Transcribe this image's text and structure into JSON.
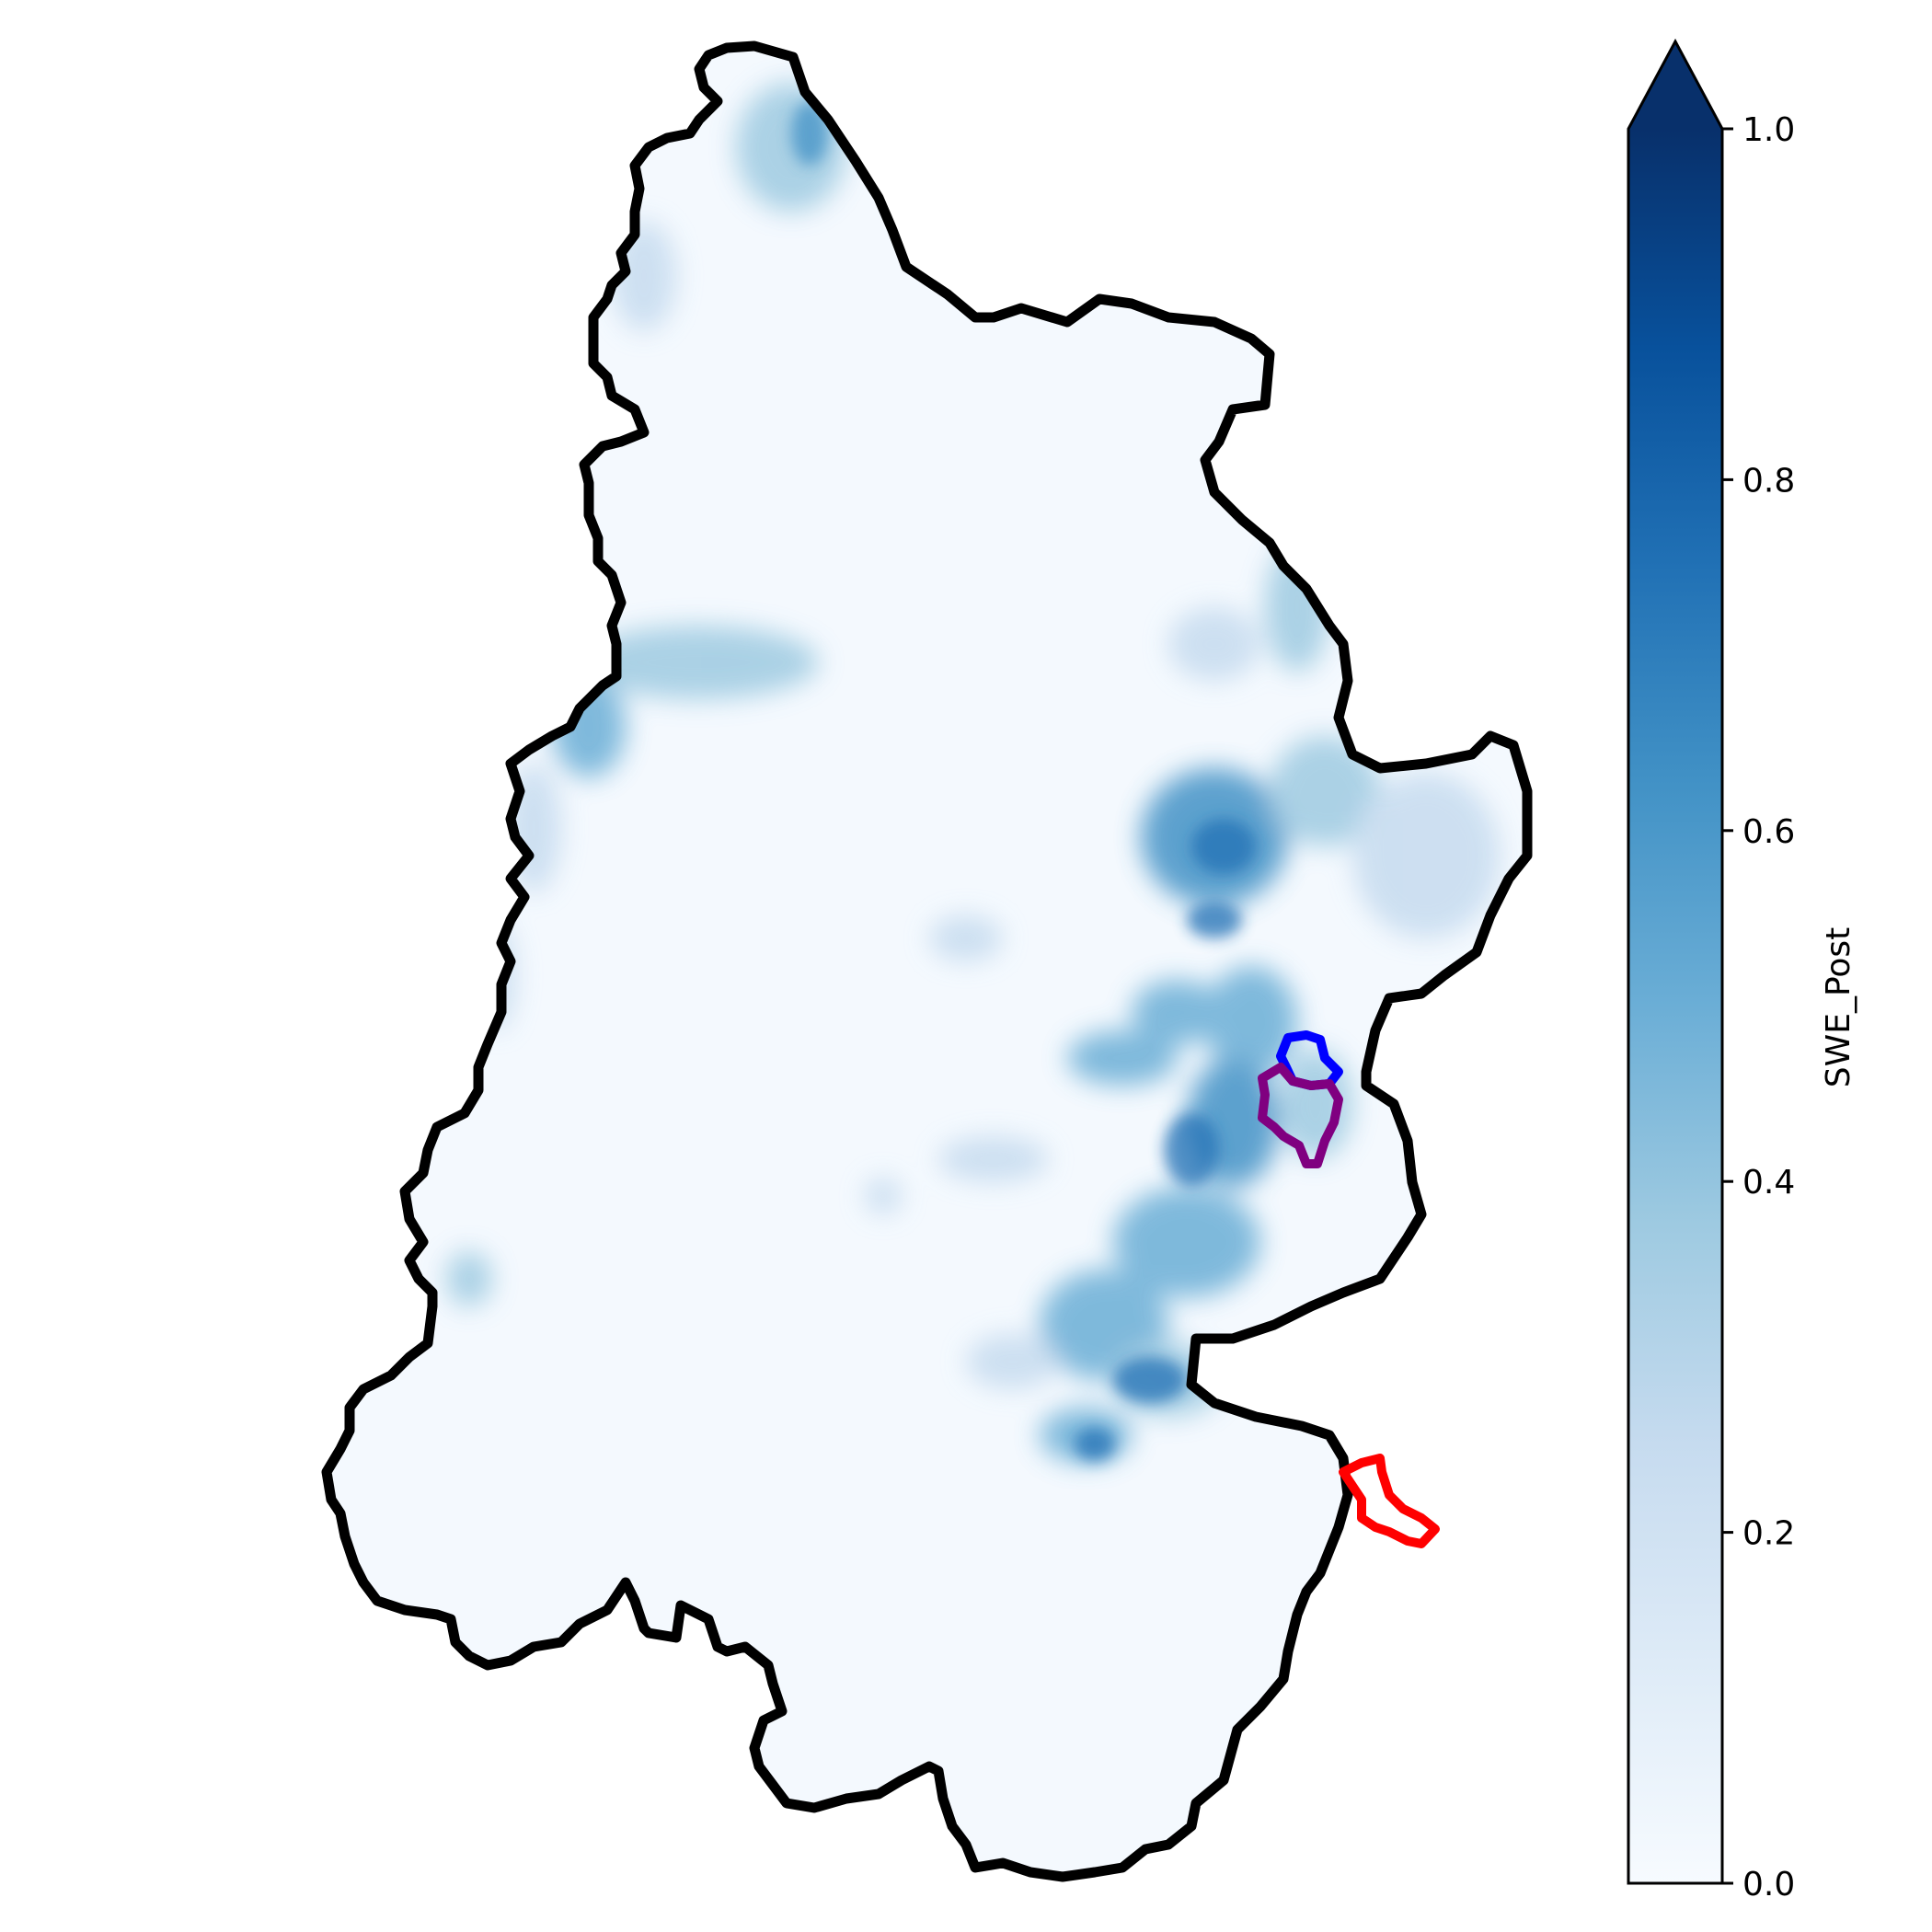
{
  "map": {
    "colormap": "Blues",
    "basin_outline_color": "#000000",
    "subbasins": [
      {
        "id": "blue",
        "color": "#0000ff"
      },
      {
        "id": "purple",
        "color": "#800080"
      },
      {
        "id": "red",
        "color": "#ff0000"
      }
    ]
  },
  "colorbar": {
    "label": "SWE_Post",
    "range": [
      0.0,
      1.0
    ],
    "extend": "max",
    "ticks": [
      "0.0",
      "0.2",
      "0.4",
      "0.6",
      "0.8",
      "1.0"
    ],
    "color_low": "#f7fbff",
    "color_mid": "#6baed6",
    "color_high": "#08306b"
  }
}
